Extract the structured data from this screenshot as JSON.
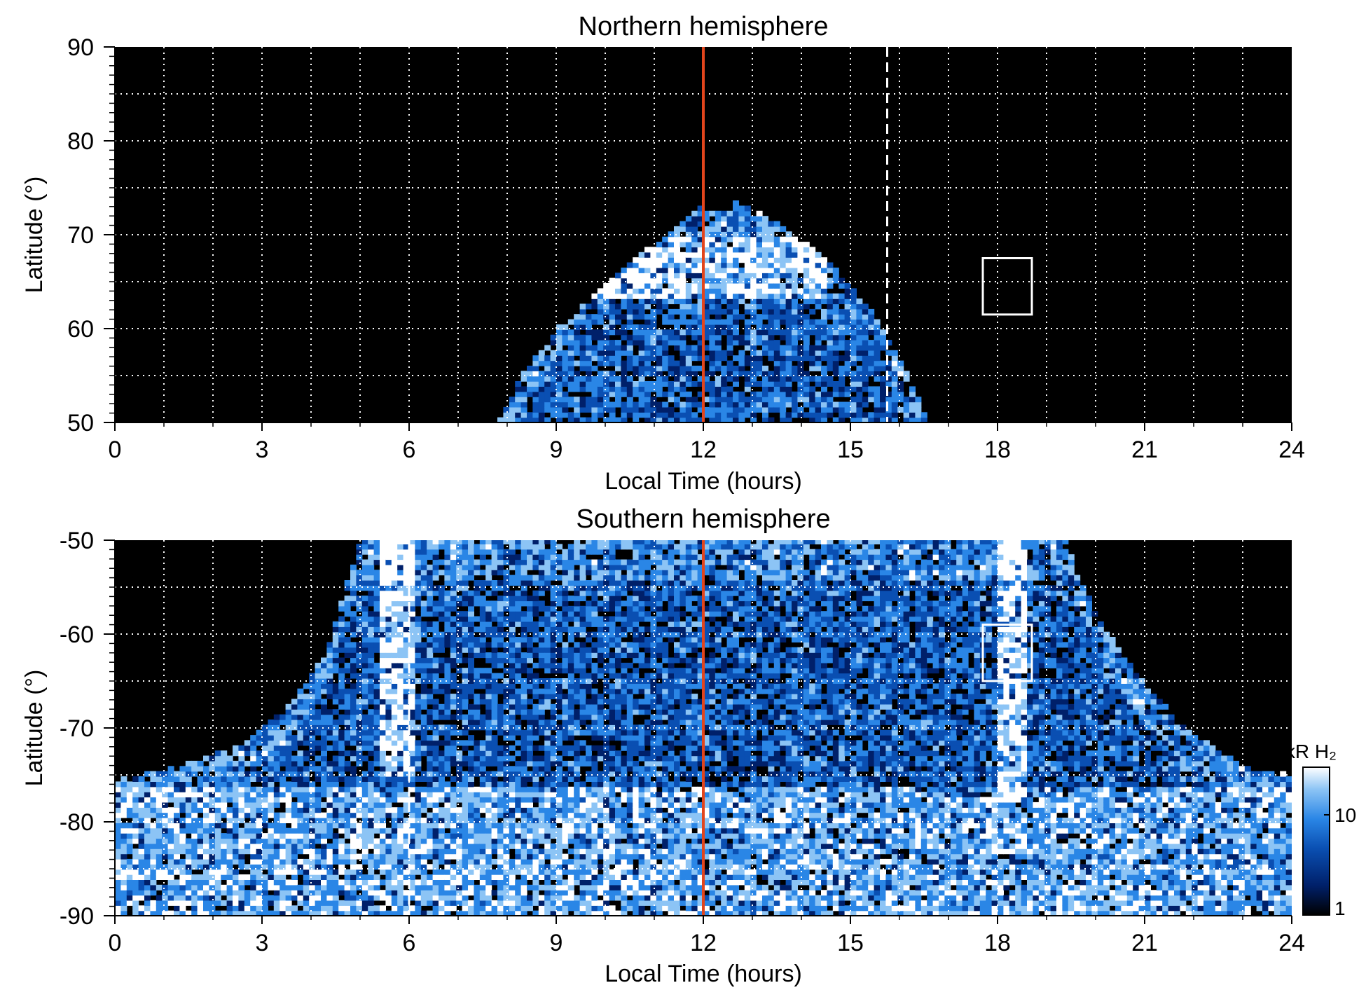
{
  "chart_data": [
    {
      "type": "heatmap",
      "title": "Northern hemisphere",
      "xlabel": "Local Time (hours)",
      "ylabel": "Latitude (°)",
      "xlim": [
        0,
        24
      ],
      "ylim": [
        50,
        90
      ],
      "x_ticks": [
        "0",
        "3",
        "6",
        "9",
        "12",
        "15",
        "18",
        "21",
        "24"
      ],
      "y_ticks": [
        "50",
        "60",
        "70",
        "80",
        "90"
      ],
      "grid": true,
      "reference_lines": [
        {
          "x": 12,
          "style": "solid",
          "color": "#e2451c"
        },
        {
          "x": 15.75,
          "style": "dashed",
          "color": "#ffffff"
        }
      ],
      "highlight_box": {
        "x": [
          17.7,
          18.7
        ],
        "y": [
          61.5,
          67.5
        ]
      },
      "emission_region": {
        "footprint_edge": [
          [
            7.8,
            50
          ],
          [
            8.3,
            55
          ],
          [
            9.0,
            60
          ],
          [
            10.0,
            65
          ],
          [
            11.0,
            69
          ],
          [
            11.9,
            73
          ],
          [
            12.3,
            72.5
          ],
          [
            12.7,
            73.5
          ],
          [
            13.6,
            71
          ],
          [
            14.6,
            67
          ],
          [
            15.4,
            62
          ],
          [
            16.0,
            57
          ],
          [
            16.6,
            50
          ]
        ],
        "bright_band": {
          "latitude_range": [
            63,
            70
          ],
          "local_time_range": [
            9.5,
            14.5
          ]
        },
        "intensity_range_kR": [
          1,
          30
        ]
      }
    },
    {
      "type": "heatmap",
      "title": "Southern hemisphere",
      "xlabel": "Local Time (hours)",
      "ylabel": "Latitude (°)",
      "xlim": [
        0,
        24
      ],
      "ylim": [
        -90,
        -50
      ],
      "x_ticks": [
        "0",
        "3",
        "6",
        "9",
        "12",
        "15",
        "18",
        "21",
        "24"
      ],
      "y_ticks": [
        "-50",
        "-60",
        "-70",
        "-80",
        "-90"
      ],
      "grid": true,
      "reference_lines": [
        {
          "x": 12,
          "style": "solid",
          "color": "#e2451c"
        },
        {
          "x": 6,
          "style": "dashed",
          "color": "#ffffff"
        }
      ],
      "highlight_box": {
        "x": [
          17.7,
          18.7
        ],
        "y": [
          -65,
          -59
        ]
      },
      "emission_region": {
        "footprint_edge": [
          [
            0,
            -75.5
          ],
          [
            1.0,
            -74.5
          ],
          [
            2.5,
            -72
          ],
          [
            3.5,
            -68
          ],
          [
            4.3,
            -62
          ],
          [
            5.0,
            -50
          ],
          [
            19.4,
            -50
          ],
          [
            20.0,
            -58
          ],
          [
            20.8,
            -64
          ],
          [
            21.8,
            -70
          ],
          [
            23.0,
            -74
          ],
          [
            24,
            -75
          ]
        ],
        "bright_arcs": [
          {
            "local_time": 5.8,
            "latitude_range": [
              -75,
              -50
            ]
          },
          {
            "local_time": 18.3,
            "latitude_range": [
              -78,
              -50
            ]
          }
        ],
        "intensity_range_kR": [
          1,
          30
        ]
      }
    }
  ],
  "colorbar": {
    "label": "kR H₂",
    "ticks": [
      "1",
      "10"
    ],
    "scale": "log",
    "colors": [
      "#000000",
      "#00206a",
      "#0a4fb2",
      "#2a86e6",
      "#8cc4f5",
      "#ffffff"
    ]
  }
}
